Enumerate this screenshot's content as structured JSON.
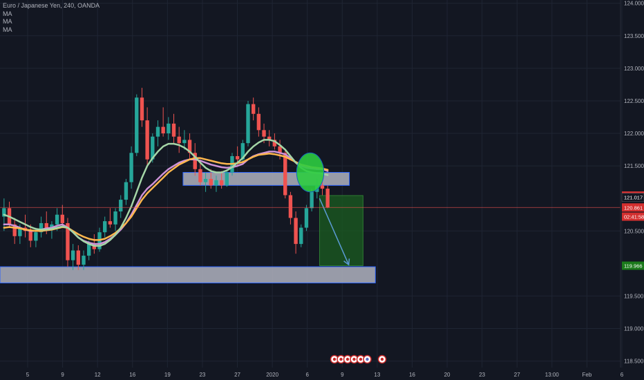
{
  "legend": {
    "symbol": "Euro / Japanese Yen, 240, OANDA",
    "indicators": [
      "MA",
      "MA",
      "MA"
    ]
  },
  "colors": {
    "background": "#131722",
    "grid": "#1f2533",
    "axis_text": "#b2b5be",
    "candle_up": "#26a69a",
    "candle_down": "#ef5350",
    "ma_fast": "#ce93d8",
    "ma_mid": "#ffb74d",
    "ma_slow": "#a5d6a7",
    "zone_fill": "#b0b3c0",
    "zone_border": "#2962ff",
    "target_fill": "#1b5e20",
    "highlight_circle": "#2ecc40",
    "arrow": "#5b9bd5",
    "price_line": "#ef5350",
    "label_red": "#d32f2f",
    "label_green": "#1b7a1b",
    "label_dark": "#131722"
  },
  "event_icons": [
    "calendar-event-icon",
    "calendar-event-icon",
    "calendar-event-icon",
    "calendar-event-icon",
    "calendar-event-icon",
    "dividend-icon",
    "calendar-event-icon"
  ],
  "chart_data": {
    "type": "candlestick",
    "title": "Euro / Japanese Yen, 240, OANDA",
    "ylim": [
      118.4,
      124.05
    ],
    "y_ticks": [
      "124.000",
      "123.500",
      "123.000",
      "122.500",
      "122.000",
      "121.500",
      "120.500",
      "119.500",
      "119.000",
      "118.500"
    ],
    "x_ticks": [
      "5",
      "9",
      "12",
      "16",
      "19",
      "23",
      "27",
      "2020",
      "6",
      "9",
      "13",
      "16",
      "20",
      "23",
      "27",
      "13:00",
      "Feb",
      "6"
    ],
    "price_labels": [
      {
        "value": 121.044,
        "text": "121.044",
        "style": "red"
      },
      {
        "value": 121.017,
        "text": "121.017",
        "style": "dark"
      },
      {
        "value": 120.861,
        "text": "120.861",
        "style": "red"
      },
      {
        "value": 120.72,
        "text": "02:41:58",
        "style": "red"
      },
      {
        "value": 119.966,
        "text": "119.966",
        "style": "green"
      }
    ],
    "current_price": 120.861,
    "zones": [
      {
        "name": "resistance-zone",
        "x0": 0.295,
        "x1": 0.563,
        "y_low": 121.2,
        "y_high": 121.4
      },
      {
        "name": "support-zone",
        "x0": 0.0,
        "x1": 0.605,
        "y_low": 119.7,
        "y_high": 119.95
      }
    ],
    "short_target": {
      "x0": 0.515,
      "x1": 0.585,
      "y_top": 121.044,
      "y_bottom": 119.966
    },
    "arrow": {
      "x0": 0.515,
      "y0": 121.0,
      "x1": 0.562,
      "y1": 119.98
    },
    "highlight": {
      "x": 0.5,
      "y": 121.4,
      "rx": 0.022,
      "ry": 0.3
    },
    "ohlc": [
      [
        120.72,
        121.0,
        120.5,
        120.85
      ],
      [
        120.85,
        120.95,
        120.55,
        120.6
      ],
      [
        120.6,
        120.7,
        120.3,
        120.42
      ],
      [
        120.42,
        120.6,
        120.3,
        120.55
      ],
      [
        120.55,
        120.75,
        120.4,
        120.5
      ],
      [
        120.5,
        120.6,
        120.25,
        120.35
      ],
      [
        120.35,
        120.55,
        120.25,
        120.48
      ],
      [
        120.48,
        120.72,
        120.4,
        120.62
      ],
      [
        120.62,
        120.8,
        120.45,
        120.52
      ],
      [
        120.52,
        120.65,
        120.38,
        120.6
      ],
      [
        120.6,
        120.85,
        120.5,
        120.75
      ],
      [
        120.75,
        120.9,
        120.55,
        120.62
      ],
      [
        120.62,
        120.7,
        119.95,
        120.05
      ],
      [
        120.05,
        120.3,
        119.9,
        120.2
      ],
      [
        120.2,
        120.28,
        119.9,
        119.98
      ],
      [
        119.98,
        120.2,
        119.9,
        120.12
      ],
      [
        120.12,
        120.35,
        120.05,
        120.3
      ],
      [
        120.3,
        120.45,
        120.15,
        120.22
      ],
      [
        120.22,
        120.55,
        120.18,
        120.48
      ],
      [
        120.48,
        120.72,
        120.4,
        120.65
      ],
      [
        120.65,
        120.85,
        120.55,
        120.6
      ],
      [
        120.6,
        120.85,
        120.5,
        120.8
      ],
      [
        120.8,
        121.05,
        120.7,
        120.98
      ],
      [
        120.98,
        121.3,
        120.9,
        121.25
      ],
      [
        121.25,
        121.8,
        121.15,
        121.7
      ],
      [
        121.7,
        122.6,
        121.65,
        122.55
      ],
      [
        122.55,
        122.7,
        122.1,
        122.2
      ],
      [
        122.2,
        122.4,
        121.5,
        121.6
      ],
      [
        121.6,
        122.0,
        121.55,
        121.95
      ],
      [
        121.95,
        122.2,
        121.8,
        122.1
      ],
      [
        122.1,
        122.4,
        121.95,
        122.0
      ],
      [
        122.0,
        122.25,
        121.9,
        122.15
      ],
      [
        122.15,
        122.3,
        121.85,
        121.95
      ],
      [
        121.95,
        122.1,
        121.7,
        121.85
      ],
      [
        121.85,
        122.05,
        121.75,
        121.9
      ],
      [
        121.9,
        122.0,
        121.6,
        121.7
      ],
      [
        121.7,
        121.85,
        121.35,
        121.45
      ],
      [
        121.45,
        121.6,
        121.2,
        121.25
      ],
      [
        121.25,
        121.4,
        121.1,
        121.3
      ],
      [
        121.3,
        121.45,
        121.15,
        121.2
      ],
      [
        121.2,
        121.35,
        121.1,
        121.28
      ],
      [
        121.28,
        121.42,
        121.15,
        121.2
      ],
      [
        121.2,
        121.45,
        121.18,
        121.4
      ],
      [
        121.4,
        121.7,
        121.35,
        121.65
      ],
      [
        121.65,
        121.8,
        121.5,
        121.6
      ],
      [
        121.6,
        121.9,
        121.55,
        121.85
      ],
      [
        121.85,
        122.5,
        121.8,
        122.45
      ],
      [
        122.45,
        122.55,
        122.2,
        122.3
      ],
      [
        122.3,
        122.4,
        121.95,
        122.05
      ],
      [
        122.05,
        122.15,
        121.85,
        121.95
      ],
      [
        121.95,
        122.05,
        121.8,
        121.9
      ],
      [
        121.9,
        122.0,
        121.75,
        121.8
      ],
      [
        121.8,
        121.9,
        121.6,
        121.7
      ],
      [
        121.7,
        121.75,
        121.0,
        121.05
      ],
      [
        121.05,
        121.1,
        120.6,
        120.7
      ],
      [
        120.7,
        120.8,
        120.15,
        120.3
      ],
      [
        120.3,
        120.6,
        120.25,
        120.55
      ],
      [
        120.55,
        120.9,
        120.5,
        120.85
      ],
      [
        120.85,
        121.15,
        120.8,
        121.1
      ],
      [
        121.1,
        121.3,
        121.0,
        121.2
      ],
      [
        121.2,
        121.35,
        121.05,
        121.15
      ],
      [
        121.15,
        121.2,
        120.85,
        120.86
      ]
    ],
    "ma_series": [
      {
        "color": "ma_fast",
        "values": [
          120.6,
          120.6,
          120.58,
          120.55,
          120.52,
          120.5,
          120.5,
          120.52,
          120.54,
          120.55,
          120.58,
          120.6,
          120.55,
          120.48,
          120.4,
          120.35,
          120.32,
          120.3,
          120.3,
          120.33,
          120.38,
          120.44,
          120.52,
          120.62,
          120.75,
          120.9,
          121.05,
          121.15,
          121.22,
          121.3,
          121.38,
          121.45,
          121.5,
          121.55,
          121.58,
          121.6,
          121.6,
          121.58,
          121.55,
          121.52,
          121.5,
          121.48,
          121.47,
          121.48,
          121.5,
          121.53,
          121.6,
          121.65,
          121.68,
          121.7,
          121.72,
          121.72,
          121.7,
          121.68,
          121.62,
          121.55,
          121.5,
          121.47,
          121.46,
          121.45,
          121.45,
          121.42
        ]
      },
      {
        "color": "ma_mid",
        "values": [
          120.55,
          120.56,
          120.55,
          120.54,
          120.52,
          120.51,
          120.5,
          120.5,
          120.51,
          120.52,
          120.54,
          120.56,
          120.55,
          120.5,
          120.45,
          120.41,
          120.38,
          120.36,
          120.36,
          120.38,
          120.42,
          120.47,
          120.54,
          120.62,
          120.72,
          120.85,
          120.98,
          121.08,
          121.16,
          121.24,
          121.32,
          121.4,
          121.46,
          121.52,
          121.56,
          121.6,
          121.62,
          121.62,
          121.6,
          121.58,
          121.56,
          121.54,
          121.53,
          121.53,
          121.54,
          121.56,
          121.6,
          121.64,
          121.67,
          121.68,
          121.69,
          121.68,
          121.66,
          121.64,
          121.6,
          121.56,
          121.52,
          121.5,
          121.48,
          121.47,
          121.46,
          121.44
        ]
      },
      {
        "color": "ma_slow",
        "values": [
          120.75,
          120.72,
          120.68,
          120.64,
          120.6,
          120.56,
          120.53,
          120.52,
          120.52,
          120.53,
          120.55,
          120.57,
          120.55,
          120.48,
          120.4,
          120.34,
          120.3,
          120.27,
          120.27,
          120.3,
          120.36,
          120.44,
          120.55,
          120.7,
          120.88,
          121.1,
          121.32,
          121.5,
          121.62,
          121.72,
          121.8,
          121.84,
          121.84,
          121.82,
          121.78,
          121.72,
          121.64,
          121.55,
          121.47,
          121.42,
          121.4,
          121.4,
          121.43,
          121.48,
          121.55,
          121.62,
          121.72,
          121.8,
          121.86,
          121.9,
          121.9,
          121.88,
          121.82,
          121.75,
          121.65,
          121.55,
          121.47,
          121.42,
          121.4,
          121.39,
          121.38,
          121.36
        ]
      }
    ]
  }
}
